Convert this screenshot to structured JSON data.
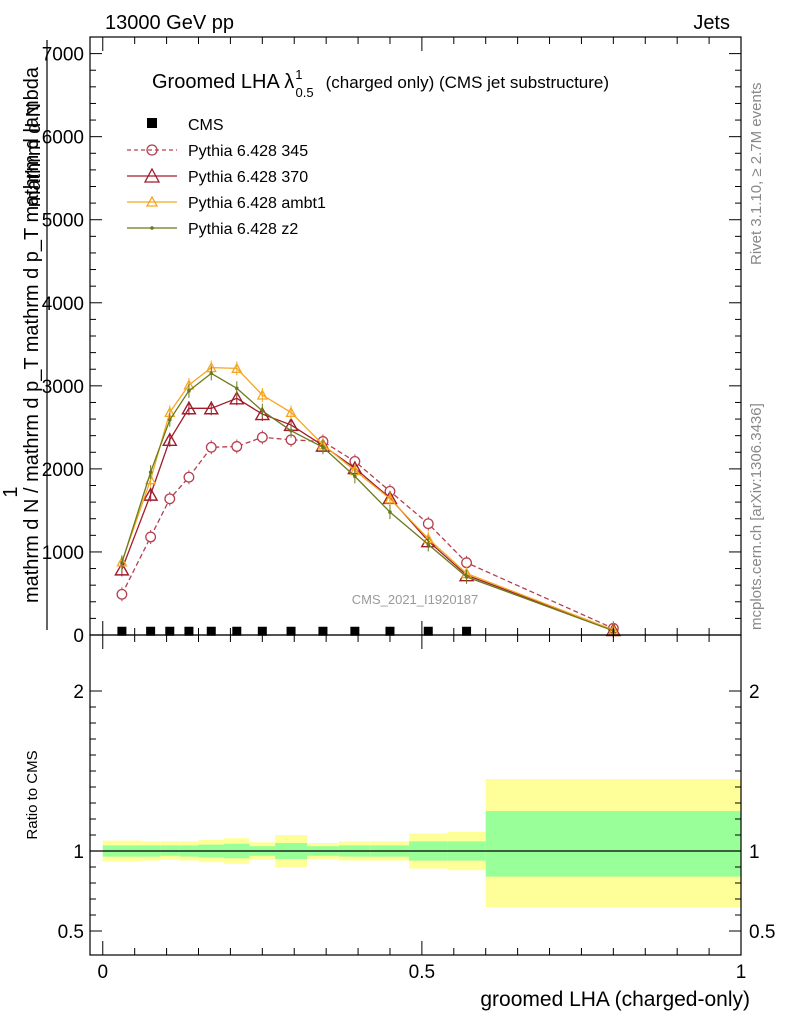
{
  "header": {
    "left": "13000 GeV pp",
    "right": "Jets"
  },
  "side_labels": {
    "rivet": "Rivet 3.1.10, ≥ 2.7M events",
    "mcplots": "mcplots.cern.ch [arXiv:1306.3436]"
  },
  "watermark": "CMS_2021_I1920187",
  "chart_data": [
    {
      "type": "line",
      "title_prefix": "Groomed LHA λ",
      "title_sup": "1",
      "title_sub": "0.5",
      "title_suffix": "(charged only) (CMS jet substructure)",
      "ylabel_top": "1",
      "ylabel_frac_num": "mathrm d N",
      "ylabel_frac_den": "mathrm d N / mathrm d p_T mathrm d p_T mathrm d lambda",
      "ylim": [
        0,
        7200
      ],
      "xlim": [
        -0.02,
        1.0
      ],
      "yticks": [
        0,
        1000,
        2000,
        3000,
        4000,
        5000,
        6000,
        7000
      ],
      "ytick_labels": [
        "0",
        "1000",
        "2000",
        "3000",
        "4000",
        "5000",
        "6000",
        "7000"
      ],
      "x": [
        0.03,
        0.075,
        0.105,
        0.135,
        0.17,
        0.21,
        0.25,
        0.295,
        0.345,
        0.395,
        0.45,
        0.51,
        0.57,
        0.8
      ],
      "series": [
        {
          "name": "CMS",
          "color": "#000000",
          "style": "square",
          "x": [
            0.03,
            0.075,
            0.105,
            0.135,
            0.17,
            0.21,
            0.25,
            0.295,
            0.345,
            0.395,
            0.45,
            0.51,
            0.57
          ],
          "values": [
            15,
            15,
            15,
            15,
            15,
            15,
            15,
            15,
            15,
            15,
            15,
            15,
            15
          ]
        },
        {
          "name": "Pythia 6.428 345",
          "color": "#b5404f",
          "style": "open-circle-dashed",
          "values": [
            490,
            1180,
            1640,
            1900,
            2260,
            2270,
            2380,
            2350,
            2330,
            2090,
            1730,
            1340,
            870,
            80
          ]
        },
        {
          "name": "Pythia 6.428 370",
          "color": "#a01c2c",
          "style": "open-triangle",
          "values": [
            790,
            1690,
            2350,
            2730,
            2730,
            2850,
            2660,
            2530,
            2280,
            2010,
            1650,
            1130,
            720,
            60
          ]
        },
        {
          "name": "Pythia 6.428 ambt1",
          "color": "#f5a623",
          "style": "open-triangle-small",
          "values": [
            880,
            1870,
            2680,
            3010,
            3220,
            3210,
            2890,
            2680,
            2290,
            1980,
            1640,
            1160,
            740,
            60
          ]
        },
        {
          "name": "Pythia 6.428 z2",
          "color": "#6b7a1a",
          "style": "dot",
          "values": [
            870,
            1960,
            2590,
            2940,
            3150,
            2970,
            2700,
            2460,
            2260,
            1910,
            1480,
            1090,
            700,
            50
          ]
        }
      ]
    },
    {
      "type": "area",
      "ylabel": "Ratio to CMS",
      "ylim": [
        0.35,
        2.35
      ],
      "xlim": [
        -0.02,
        1.0
      ],
      "yticks": [
        0.5,
        1,
        2
      ],
      "ytick_labels": [
        "0.5",
        "1",
        "2"
      ],
      "xticks": [
        0,
        0.5,
        1
      ],
      "xtick_labels": [
        "0",
        "0.5",
        "1"
      ],
      "xlabel": "groomed LHA (charged-only)",
      "reference": 1,
      "bands": [
        {
          "x": [
            0.0,
            0.06
          ],
          "inner": [
            0.965,
            1.035
          ],
          "outer": [
            0.935,
            1.065
          ]
        },
        {
          "x": [
            0.06,
            0.09
          ],
          "inner": [
            0.965,
            1.035
          ],
          "outer": [
            0.94,
            1.06
          ]
        },
        {
          "x": [
            0.09,
            0.12
          ],
          "inner": [
            0.97,
            1.035
          ],
          "outer": [
            0.945,
            1.06
          ]
        },
        {
          "x": [
            0.12,
            0.15
          ],
          "inner": [
            0.965,
            1.035
          ],
          "outer": [
            0.94,
            1.06
          ]
        },
        {
          "x": [
            0.15,
            0.19
          ],
          "inner": [
            0.96,
            1.04
          ],
          "outer": [
            0.93,
            1.07
          ]
        },
        {
          "x": [
            0.19,
            0.23
          ],
          "inner": [
            0.955,
            1.045
          ],
          "outer": [
            0.92,
            1.08
          ]
        },
        {
          "x": [
            0.23,
            0.27
          ],
          "inner": [
            0.97,
            1.03
          ],
          "outer": [
            0.945,
            1.055
          ]
        },
        {
          "x": [
            0.27,
            0.32
          ],
          "inner": [
            0.95,
            1.05
          ],
          "outer": [
            0.9,
            1.1
          ]
        },
        {
          "x": [
            0.32,
            0.37
          ],
          "inner": [
            0.97,
            1.03
          ],
          "outer": [
            0.95,
            1.05
          ]
        },
        {
          "x": [
            0.37,
            0.42
          ],
          "inner": [
            0.965,
            1.035
          ],
          "outer": [
            0.94,
            1.06
          ]
        },
        {
          "x": [
            0.42,
            0.48
          ],
          "inner": [
            0.965,
            1.035
          ],
          "outer": [
            0.94,
            1.06
          ]
        },
        {
          "x": [
            0.48,
            0.54
          ],
          "inner": [
            0.94,
            1.06
          ],
          "outer": [
            0.89,
            1.11
          ]
        },
        {
          "x": [
            0.54,
            0.6
          ],
          "inner": [
            0.94,
            1.06
          ],
          "outer": [
            0.88,
            1.12
          ]
        },
        {
          "x": [
            0.6,
            1.0
          ],
          "inner": [
            0.84,
            1.25
          ],
          "outer": [
            0.65,
            1.45
          ]
        }
      ],
      "band_colors": {
        "inner": "#99ff99",
        "outer": "#ffff99"
      }
    }
  ]
}
